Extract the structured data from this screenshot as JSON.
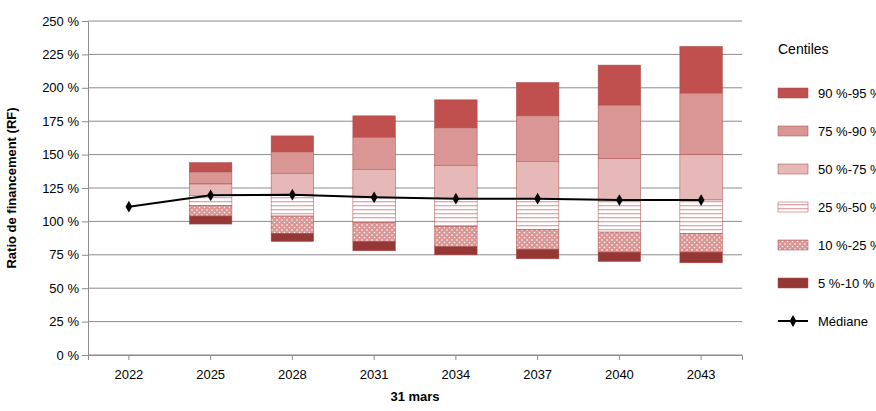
{
  "chart_data": {
    "type": "bar",
    "x_label": "31 mars",
    "y_label": "Ratio de financement (RF)",
    "legend_title": "Centiles",
    "categories": [
      "2022",
      "2025",
      "2028",
      "2031",
      "2034",
      "2037",
      "2040",
      "2043"
    ],
    "stacked": false,
    "grid": true,
    "legend": "right",
    "ylim": [
      0,
      250
    ],
    "yticks": [
      {
        "value": 0,
        "label": "0 %"
      },
      {
        "value": 25,
        "label": "25 %"
      },
      {
        "value": 50,
        "label": "50 %"
      },
      {
        "value": 75,
        "label": "75 %"
      },
      {
        "value": 100,
        "label": "100 %"
      },
      {
        "value": 125,
        "label": "125 %"
      },
      {
        "value": 150,
        "label": "150 %"
      },
      {
        "value": 175,
        "label": "175 %"
      },
      {
        "value": 200,
        "label": "200 %"
      },
      {
        "value": 225,
        "label": "225 %"
      },
      {
        "value": 250,
        "label": "250 %"
      }
    ],
    "series": [
      {
        "name": "90 %-95 %",
        "color": "#c0504d",
        "values": [
          null,
          [
            137,
            144
          ],
          [
            152,
            164
          ],
          [
            163,
            179
          ],
          [
            170,
            191
          ],
          [
            179,
            204
          ],
          [
            187,
            217
          ],
          [
            196,
            231
          ]
        ]
      },
      {
        "name": "75 %-90 %",
        "color": "#d99694",
        "values": [
          null,
          [
            128,
            137
          ],
          [
            136,
            152
          ],
          [
            139,
            163
          ],
          [
            142,
            170
          ],
          [
            145,
            179
          ],
          [
            147,
            187
          ],
          [
            150,
            196
          ]
        ]
      },
      {
        "name": "50 %-75 %",
        "color": "#e6b9b8",
        "values": [
          null,
          [
            119.5,
            128
          ],
          [
            120,
            136
          ],
          [
            118,
            139
          ],
          [
            117,
            142
          ],
          [
            117,
            145
          ],
          [
            116,
            147
          ],
          [
            116,
            150
          ]
        ]
      },
      {
        "name": "25 %-50 %",
        "color": "#e6a5a4",
        "values": [
          null,
          [
            112,
            119.5
          ],
          [
            104,
            120
          ],
          [
            99,
            118
          ],
          [
            96,
            117
          ],
          [
            94,
            117
          ],
          [
            92,
            116
          ],
          [
            91,
            116
          ]
        ]
      },
      {
        "name": "10 %-25 %",
        "color": "#d99694",
        "values": [
          null,
          [
            104,
            112
          ],
          [
            91,
            104
          ],
          [
            85,
            99
          ],
          [
            81,
            96
          ],
          [
            79,
            94
          ],
          [
            77,
            92
          ],
          [
            77,
            91
          ]
        ]
      },
      {
        "name": "5 %-10 %",
        "color": "#953735",
        "values": [
          null,
          [
            98,
            104
          ],
          [
            85,
            91
          ],
          [
            78,
            85
          ],
          [
            75,
            81
          ],
          [
            72,
            79
          ],
          [
            70,
            77
          ],
          [
            69,
            77
          ]
        ]
      },
      {
        "name": "Médiane",
        "type": "line",
        "marker": "diamond",
        "color": "#000000",
        "values": [
          111,
          119.5,
          120,
          118,
          117,
          117,
          116,
          116
        ]
      }
    ]
  }
}
